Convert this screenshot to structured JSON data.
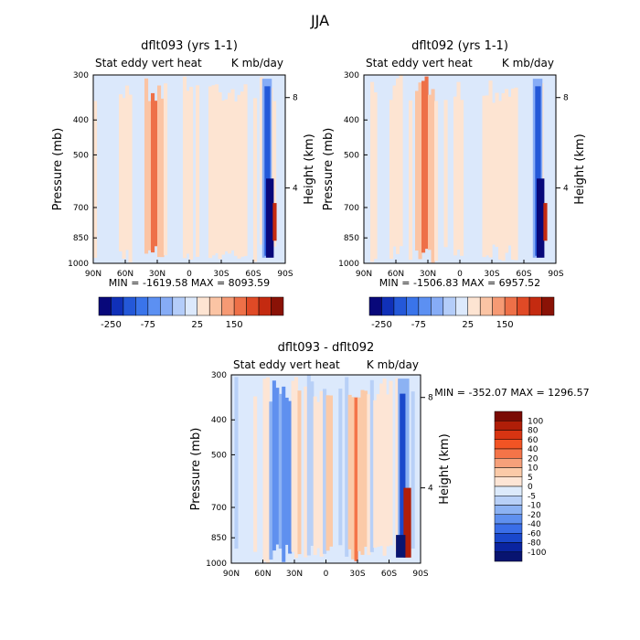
{
  "figure_title": "JJA",
  "chart_data": [
    {
      "type": "heatmap",
      "title": "dflt093 (yrs 1-1)",
      "subtitle_left": "Stat eddy vert heat",
      "subtitle_right": "K mb/day",
      "xlabel": "",
      "ylabel": "Pressure (mb)",
      "y2label": "Height (km)",
      "x_ticks": [
        "90N",
        "60N",
        "30N",
        "0",
        "30S",
        "60S",
        "90S"
      ],
      "y_ticks": [
        "300",
        "400",
        "500",
        "700",
        "850",
        "1000"
      ],
      "y2_ticks": [
        "8",
        "4"
      ],
      "ylim": [
        1000,
        300
      ],
      "stats": "MIN = -1619.58   MAX = 8093.59",
      "colorbar_labels": [
        "-250",
        "-75",
        "25",
        "150"
      ],
      "colorbar_orientation": "horizontal"
    },
    {
      "type": "heatmap",
      "title": "dflt092 (yrs 1-1)",
      "subtitle_left": "Stat eddy vert heat",
      "subtitle_right": "K mb/day",
      "xlabel": "",
      "ylabel": "Pressure (mb)",
      "y2label": "Height (km)",
      "x_ticks": [
        "90N",
        "60N",
        "30N",
        "0",
        "30S",
        "60S",
        "90S"
      ],
      "y_ticks": [
        "300",
        "400",
        "500",
        "700",
        "850",
        "1000"
      ],
      "y2_ticks": [
        "8",
        "4"
      ],
      "ylim": [
        1000,
        300
      ],
      "stats": "MIN = -1506.83   MAX = 6957.52",
      "colorbar_labels": [
        "-250",
        "-75",
        "25",
        "150"
      ],
      "colorbar_orientation": "horizontal"
    },
    {
      "type": "heatmap",
      "title": "dflt093 - dflt092",
      "subtitle_left": "Stat eddy vert heat",
      "subtitle_right": "K mb/day",
      "xlabel": "",
      "ylabel": "Pressure (mb)",
      "y2label": "Height (km)",
      "x_ticks": [
        "90N",
        "60N",
        "30N",
        "0",
        "30S",
        "60S",
        "90S"
      ],
      "y_ticks": [
        "300",
        "400",
        "500",
        "700",
        "850",
        "1000"
      ],
      "y2_ticks": [
        "8",
        "4"
      ],
      "ylim": [
        1000,
        300
      ],
      "stats": "MIN = -352.07   MAX = 1296.57",
      "colorbar_labels": [
        "100",
        "80",
        "60",
        "40",
        "20",
        "10",
        "5",
        "0",
        "-5",
        "-10",
        "-20",
        "-40",
        "-60",
        "-80",
        "-100"
      ],
      "colorbar_orientation": "vertical"
    }
  ],
  "colors": {
    "horizontal_scale": [
      "#08087a",
      "#1030b8",
      "#2458d8",
      "#3a74ea",
      "#5c90f2",
      "#86acf6",
      "#b4cdf9",
      "#dce9fc",
      "#fde4d2",
      "#fbc4a4",
      "#f69a74",
      "#ee7048",
      "#e04a26",
      "#c42a10",
      "#8a1206"
    ],
    "vertical_scale": [
      "#7a0a04",
      "#b01e08",
      "#d83412",
      "#f25424",
      "#f47448",
      "#f6a07a",
      "#fbcaa8",
      "#fde5d5",
      "#dceafb",
      "#b8d0f7",
      "#8cb2f3",
      "#5f90ef",
      "#3a6ee8",
      "#1a48cc",
      "#0a24a0",
      "#081470"
    ]
  }
}
